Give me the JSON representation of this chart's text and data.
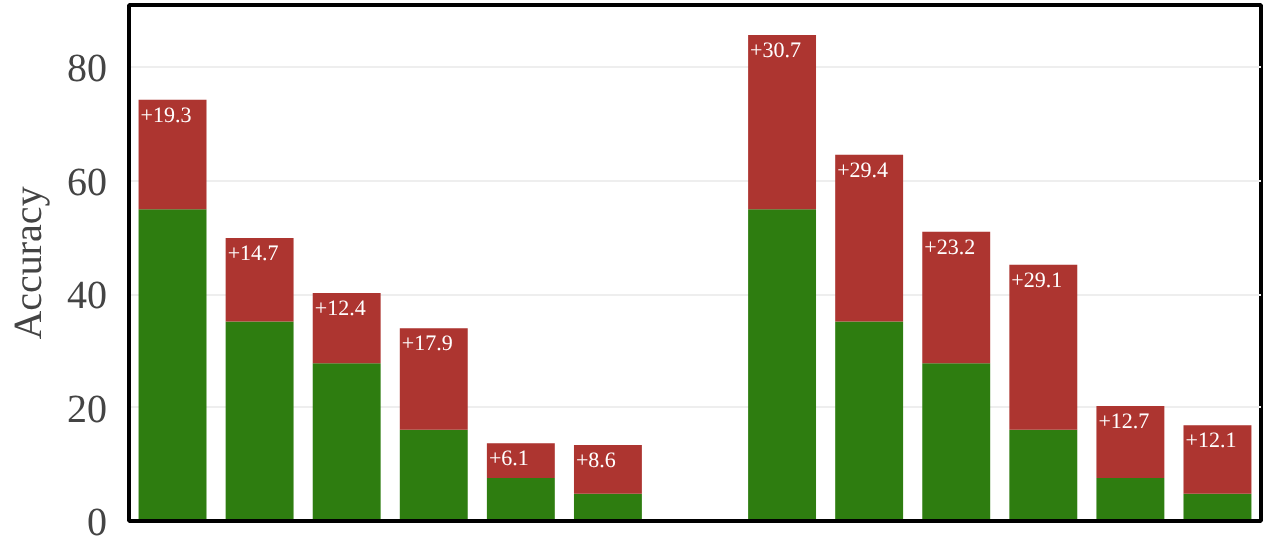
{
  "chart_data": {
    "type": "bar",
    "stacked": true,
    "ylabel": "Accuracy",
    "categories": [
      null,
      null,
      null,
      null,
      null,
      null,
      null,
      null,
      null,
      null,
      null,
      null,
      null
    ],
    "series": [
      {
        "color": "#2e7d10",
        "values": [
          55,
          35.2,
          27.8,
          16.1,
          7.6,
          4.8,
          null,
          55,
          35.2,
          27.8,
          16.1,
          7.6,
          4.8
        ]
      },
      {
        "color": "#ad3530",
        "values": [
          19.3,
          14.7,
          12.4,
          17.9,
          6.1,
          8.6,
          null,
          30.7,
          29.4,
          23.2,
          29.1,
          12.7,
          12.1
        ],
        "value_labels": [
          "+19.3",
          "+14.7",
          "+12.4",
          "+17.9",
          "+6.1",
          "+8.6",
          null,
          "+30.7",
          "+29.4",
          "+23.2",
          "+29.1",
          "+12.7",
          "+12.1"
        ]
      }
    ],
    "ylim": [
      0,
      91
    ],
    "yticks": [
      0,
      20,
      40,
      60,
      80
    ],
    "grid": "y",
    "tick_labels": "y"
  }
}
